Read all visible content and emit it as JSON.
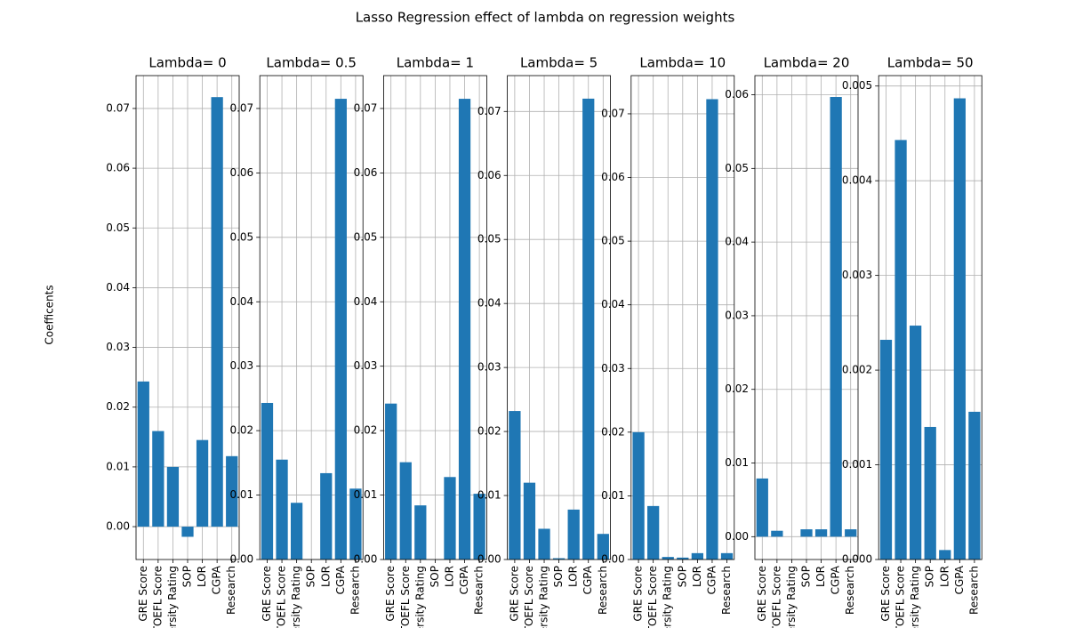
{
  "title": "Lasso Regression effect of lambda on regression weights",
  "ylabel": "Coefficents",
  "chart_data": [
    {
      "type": "bar",
      "title": "Lambda= 0",
      "categories": [
        "GRE Score",
        "TOEFL Score",
        "University Rating",
        "SOP",
        "LOR",
        "CGPA",
        "Research"
      ],
      "values": [
        0.0243,
        0.016,
        0.01,
        -0.0017,
        0.0145,
        0.0719,
        0.0118
      ],
      "color": "#1f77b4",
      "ylim": [
        -0.0055,
        0.0755
      ],
      "yticks": [
        {
          "value": 0,
          "label": "0.00"
        },
        0.01,
        0.02,
        0.03,
        0.04,
        0.05,
        0.06,
        0.07
      ],
      "grid": true
    },
    {
      "type": "bar",
      "title": "Lambda= 0.5",
      "categories": [
        "GRE Score",
        "TOEFL Score",
        "University Rating",
        "SOP",
        "LOR",
        "CGPA",
        "Research"
      ],
      "values": [
        0.0243,
        0.0155,
        0.0088,
        0,
        0.0134,
        0.0715,
        0.011
      ],
      "color": "#1f77b4",
      "ylim": [
        0,
        0.0751
      ],
      "yticks": [
        {
          "value": 0,
          "label": "0.00"
        },
        0.01,
        0.02,
        0.03,
        0.04,
        0.05,
        0.06,
        0.07
      ],
      "grid": true
    },
    {
      "type": "bar",
      "title": "Lambda= 1",
      "categories": [
        "GRE Score",
        "TOEFL Score",
        "University Rating",
        "SOP",
        "LOR",
        "CGPA",
        "Research"
      ],
      "values": [
        0.0242,
        0.0151,
        0.0084,
        0,
        0.0128,
        0.0715,
        0.0102
      ],
      "color": "#1f77b4",
      "ylim": [
        0,
        0.0751
      ],
      "yticks": [
        {
          "value": 0,
          "label": "0.00"
        },
        0.01,
        0.02,
        0.03,
        0.04,
        0.05,
        0.06,
        0.07
      ],
      "grid": true
    },
    {
      "type": "bar",
      "title": "Lambda= 5",
      "categories": [
        "GRE Score",
        "TOEFL Score",
        "University Rating",
        "SOP",
        "LOR",
        "CGPA",
        "Research"
      ],
      "values": [
        0.0232,
        0.012,
        0.0048,
        0.0002,
        0.0078,
        0.072,
        0.004
      ],
      "color": "#1f77b4",
      "ylim": [
        0,
        0.0756
      ],
      "yticks": [
        {
          "value": 0,
          "label": "0.00"
        },
        0.01,
        0.02,
        0.03,
        0.04,
        0.05,
        0.06,
        0.07
      ],
      "grid": true
    },
    {
      "type": "bar",
      "title": "Lambda= 10",
      "categories": [
        "GRE Score",
        "TOEFL Score",
        "University Rating",
        "SOP",
        "LOR",
        "CGPA",
        "Research"
      ],
      "values": [
        0.02,
        0.0084,
        0.0004,
        0.0003,
        0.001,
        0.0723,
        0.001
      ],
      "color": "#1f77b4",
      "ylim": [
        0,
        0.076
      ],
      "yticks": [
        {
          "value": 0,
          "label": "0.00"
        },
        0.01,
        0.02,
        0.03,
        0.04,
        0.05,
        0.06,
        0.07
      ],
      "grid": true
    },
    {
      "type": "bar",
      "title": "Lambda= 20",
      "categories": [
        "GRE Score",
        "TOEFL Score",
        "University Rating",
        "SOP",
        "LOR",
        "CGPA",
        "Research"
      ],
      "values": [
        0.0079,
        0.0008,
        0,
        0.001,
        0.001,
        0.0597,
        0.001
      ],
      "color": "#1f77b4",
      "ylim": [
        -0.0031,
        0.0626
      ],
      "yticks": [
        {
          "value": 0,
          "label": "0.00"
        },
        0.01,
        0.02,
        0.03,
        0.04,
        0.05,
        0.06
      ],
      "grid": true
    },
    {
      "type": "bar",
      "title": "Lambda= 50",
      "categories": [
        "GRE Score",
        "TOEFL Score",
        "University Rating",
        "SOP",
        "LOR",
        "CGPA",
        "Research"
      ],
      "values": [
        0.00232,
        0.00443,
        0.00247,
        0.0014,
        0.0001,
        0.00487,
        0.00156
      ],
      "color": "#1f77b4",
      "ylim": [
        0,
        0.00511
      ],
      "yticks": [
        {
          "value": 0,
          "label": "0.000"
        },
        0.001,
        0.002,
        0.003,
        0.004,
        0.005
      ],
      "grid": true
    }
  ]
}
